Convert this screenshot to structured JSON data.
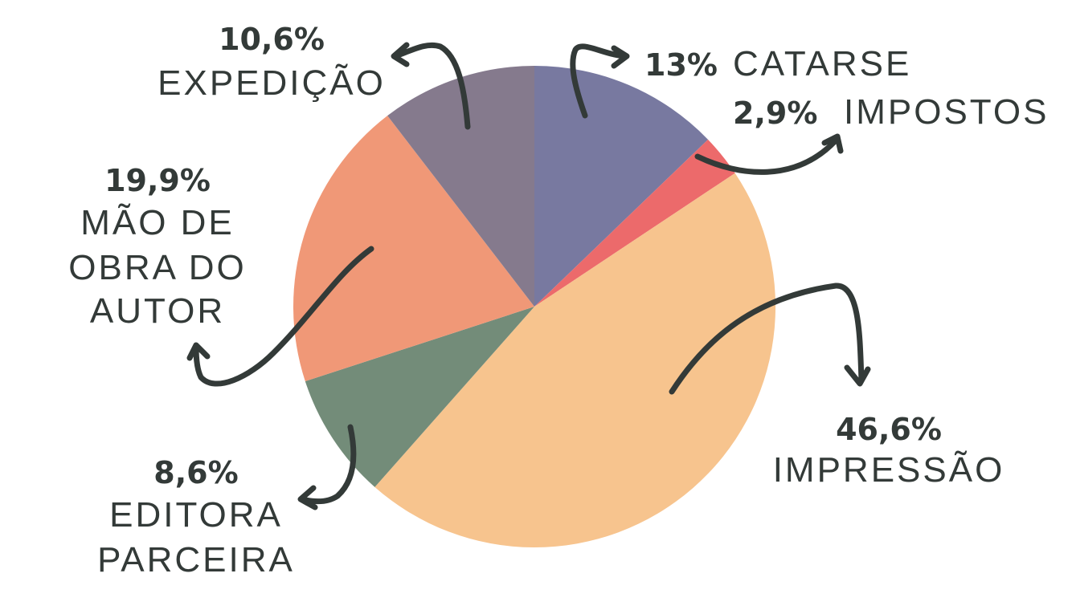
{
  "chart_data": {
    "type": "pie",
    "start_angle_deg": 0,
    "direction": "clockwise",
    "slices": [
      {
        "label": "CATARSE",
        "pct_label": "13%",
        "value": 13.0,
        "color": "#7879a0"
      },
      {
        "label": "IMPOSTOS",
        "pct_label": "2,9%",
        "value": 2.9,
        "color": "#ec6a6b"
      },
      {
        "label": "IMPRESSÃO",
        "pct_label": "46,6%",
        "value": 46.6,
        "color": "#f7c48e"
      },
      {
        "label": "EDITORA PARCEIRA",
        "label_lines": [
          "EDITORA",
          "PARCEIRA"
        ],
        "pct_label": "8,6%",
        "value": 8.6,
        "color": "#738c79"
      },
      {
        "label": "MÃO DE OBRA DO AUTOR",
        "label_lines": [
          "MÃO DE",
          "OBRA DO",
          "AUTOR"
        ],
        "pct_label": "19,9%",
        "value": 19.9,
        "color": "#f09877"
      },
      {
        "label": "EXPEDIÇÃO",
        "pct_label": "10,6%",
        "value": 10.6,
        "color": "#857a8d"
      }
    ],
    "text_color": "#333a38"
  }
}
